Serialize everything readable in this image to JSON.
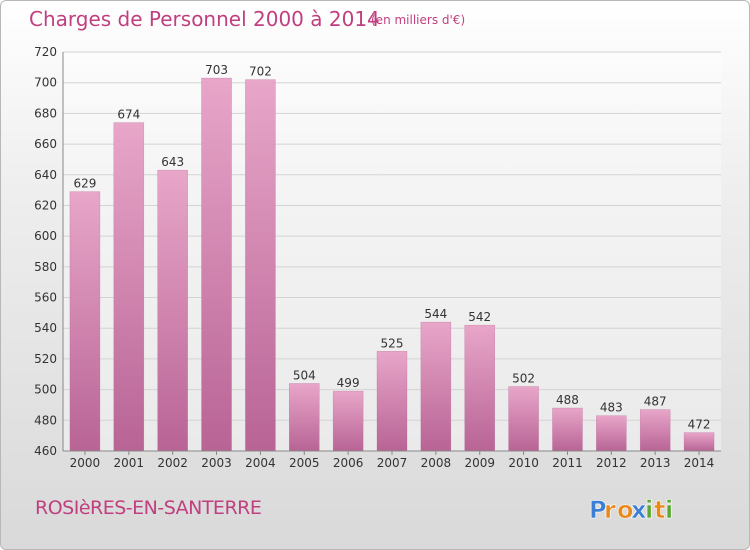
{
  "title": "Charges de Personnel 2000 à 2014",
  "subtitle": "(en milliers d'€)",
  "commune": "ROSIèRES-EN-SANTERRE",
  "logo": {
    "letters": [
      "P",
      "r",
      "o",
      "x",
      "i",
      "t",
      "i"
    ],
    "colors": [
      "#3a7fd5",
      "#e8891c",
      "#e8891c",
      "#3a7fd5",
      "#5aa832",
      "#e8891c",
      "#5aa832"
    ]
  },
  "colors": {
    "accent": "#c0407f",
    "bar_top": "#e8a6c9",
    "bar_bottom": "#b86495"
  },
  "chart_data": {
    "type": "bar",
    "categories": [
      "2000",
      "2001",
      "2002",
      "2003",
      "2004",
      "2005",
      "2006",
      "2007",
      "2008",
      "2009",
      "2010",
      "2011",
      "2012",
      "2013",
      "2014"
    ],
    "values": [
      629,
      674,
      643,
      703,
      702,
      504,
      499,
      525,
      544,
      542,
      502,
      488,
      483,
      487,
      472
    ],
    "ylim": [
      460,
      720
    ],
    "yticks": [
      460,
      480,
      500,
      520,
      540,
      560,
      580,
      600,
      620,
      640,
      660,
      680,
      700,
      720
    ],
    "grid": true
  }
}
